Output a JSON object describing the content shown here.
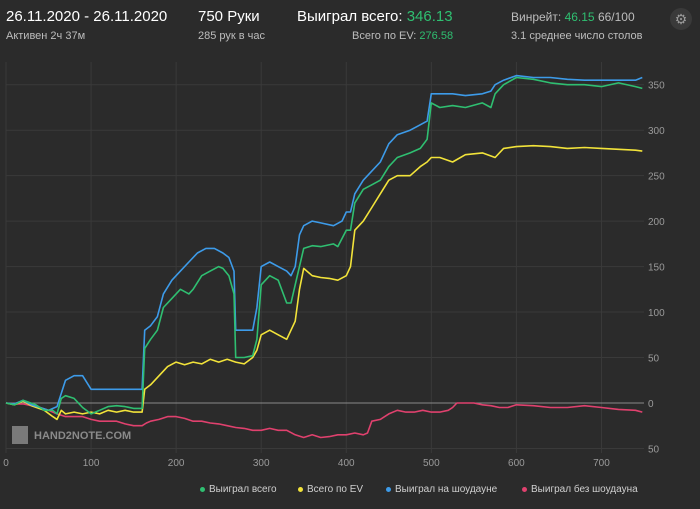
{
  "header": {
    "date_range": "26.11.2020 - 26.11.2020",
    "active": "Активен 2ч 37м",
    "hands": "750 Руки",
    "hands_per_hour": "285 рук в час",
    "won_total_label": "Выиграл всего:",
    "won_total_value": "346.13",
    "ev_label": "Всего по EV:",
    "ev_value": "276.58",
    "winrate_label": "Винрейт:",
    "winrate_value": "46.15",
    "winrate_extra": "66/100",
    "tables": "3.1 среднее число столов"
  },
  "watermark": "HAND2NOTE.COM",
  "colors": {
    "green": "#2fbf71",
    "yellow": "#f2e33a",
    "blue": "#3d9be9",
    "pink": "#e0416e"
  },
  "chart_data": {
    "type": "line",
    "xlabel": "",
    "ylabel": "",
    "xlim": [
      0,
      750
    ],
    "ylim": [
      -55,
      375
    ],
    "x_ticks": [
      0,
      100,
      200,
      300,
      400,
      500,
      600,
      700
    ],
    "y_ticks": [
      350,
      300,
      250,
      200,
      150,
      100,
      50,
      0,
      -50
    ],
    "y_tick_labels": [
      "350",
      "300",
      "250",
      "200",
      "150",
      "100",
      "50",
      "0",
      "50"
    ],
    "grid": true,
    "legend_position": "bottom",
    "series": [
      {
        "name": "Выиграл всего",
        "color": "#2fbf71",
        "points": [
          [
            0,
            0
          ],
          [
            10,
            -2
          ],
          [
            20,
            3
          ],
          [
            35,
            -2
          ],
          [
            45,
            -8
          ],
          [
            55,
            -8
          ],
          [
            60,
            -12
          ],
          [
            65,
            5
          ],
          [
            70,
            8
          ],
          [
            80,
            5
          ],
          [
            90,
            -5
          ],
          [
            100,
            -12
          ],
          [
            110,
            -8
          ],
          [
            120,
            -4
          ],
          [
            130,
            -3
          ],
          [
            140,
            -4
          ],
          [
            150,
            -6
          ],
          [
            160,
            -6
          ],
          [
            163,
            60
          ],
          [
            170,
            70
          ],
          [
            178,
            80
          ],
          [
            185,
            105
          ],
          [
            195,
            115
          ],
          [
            205,
            125
          ],
          [
            215,
            120
          ],
          [
            220,
            125
          ],
          [
            230,
            140
          ],
          [
            240,
            145
          ],
          [
            250,
            150
          ],
          [
            255,
            148
          ],
          [
            262,
            140
          ],
          [
            268,
            120
          ],
          [
            270,
            50
          ],
          [
            280,
            50
          ],
          [
            290,
            52
          ],
          [
            295,
            70
          ],
          [
            300,
            130
          ],
          [
            310,
            140
          ],
          [
            320,
            135
          ],
          [
            330,
            110
          ],
          [
            335,
            110
          ],
          [
            340,
            130
          ],
          [
            350,
            170
          ],
          [
            360,
            173
          ],
          [
            370,
            172
          ],
          [
            385,
            175
          ],
          [
            390,
            172
          ],
          [
            400,
            190
          ],
          [
            405,
            190
          ],
          [
            410,
            220
          ],
          [
            420,
            235
          ],
          [
            430,
            240
          ],
          [
            440,
            245
          ],
          [
            450,
            260
          ],
          [
            460,
            270
          ],
          [
            475,
            275
          ],
          [
            487,
            280
          ],
          [
            495,
            290
          ],
          [
            500,
            330
          ],
          [
            510,
            325
          ],
          [
            525,
            327
          ],
          [
            540,
            325
          ],
          [
            560,
            330
          ],
          [
            570,
            325
          ],
          [
            575,
            340
          ],
          [
            585,
            350
          ],
          [
            600,
            358
          ],
          [
            620,
            356
          ],
          [
            640,
            352
          ],
          [
            660,
            350
          ],
          [
            680,
            350
          ],
          [
            700,
            348
          ],
          [
            720,
            352
          ],
          [
            740,
            348
          ],
          [
            748,
            346
          ]
        ]
      },
      {
        "name": "Всего по EV",
        "color": "#f2e33a",
        "points": [
          [
            0,
            0
          ],
          [
            10,
            -2
          ],
          [
            20,
            2
          ],
          [
            30,
            -3
          ],
          [
            45,
            -8
          ],
          [
            55,
            -15
          ],
          [
            60,
            -18
          ],
          [
            65,
            -8
          ],
          [
            70,
            -12
          ],
          [
            80,
            -10
          ],
          [
            90,
            -12
          ],
          [
            100,
            -10
          ],
          [
            110,
            -12
          ],
          [
            120,
            -8
          ],
          [
            130,
            -10
          ],
          [
            140,
            -8
          ],
          [
            150,
            -10
          ],
          [
            160,
            -10
          ],
          [
            163,
            15
          ],
          [
            170,
            20
          ],
          [
            180,
            30
          ],
          [
            190,
            40
          ],
          [
            200,
            45
          ],
          [
            210,
            42
          ],
          [
            220,
            45
          ],
          [
            230,
            43
          ],
          [
            240,
            48
          ],
          [
            250,
            45
          ],
          [
            260,
            48
          ],
          [
            270,
            45
          ],
          [
            280,
            43
          ],
          [
            290,
            50
          ],
          [
            295,
            58
          ],
          [
            300,
            75
          ],
          [
            310,
            80
          ],
          [
            320,
            75
          ],
          [
            330,
            70
          ],
          [
            340,
            90
          ],
          [
            345,
            125
          ],
          [
            350,
            148
          ],
          [
            360,
            140
          ],
          [
            370,
            138
          ],
          [
            380,
            137
          ],
          [
            390,
            135
          ],
          [
            400,
            140
          ],
          [
            405,
            150
          ],
          [
            410,
            190
          ],
          [
            420,
            200
          ],
          [
            430,
            215
          ],
          [
            440,
            230
          ],
          [
            450,
            245
          ],
          [
            460,
            250
          ],
          [
            475,
            250
          ],
          [
            487,
            260
          ],
          [
            495,
            265
          ],
          [
            500,
            270
          ],
          [
            510,
            270
          ],
          [
            525,
            265
          ],
          [
            540,
            273
          ],
          [
            560,
            275
          ],
          [
            575,
            270
          ],
          [
            585,
            280
          ],
          [
            600,
            282
          ],
          [
            620,
            283
          ],
          [
            640,
            282
          ],
          [
            660,
            280
          ],
          [
            680,
            281
          ],
          [
            700,
            280
          ],
          [
            720,
            279
          ],
          [
            740,
            278
          ],
          [
            748,
            277
          ]
        ]
      },
      {
        "name": "Выиграл на шоудауне",
        "color": "#3d9be9",
        "points": [
          [
            0,
            0
          ],
          [
            10,
            -1
          ],
          [
            20,
            3
          ],
          [
            30,
            -2
          ],
          [
            40,
            -5
          ],
          [
            50,
            -8
          ],
          [
            60,
            -4
          ],
          [
            70,
            25
          ],
          [
            80,
            30
          ],
          [
            90,
            30
          ],
          [
            100,
            15
          ],
          [
            110,
            15
          ],
          [
            120,
            15
          ],
          [
            130,
            15
          ],
          [
            140,
            15
          ],
          [
            150,
            15
          ],
          [
            160,
            15
          ],
          [
            163,
            80
          ],
          [
            170,
            85
          ],
          [
            178,
            95
          ],
          [
            185,
            120
          ],
          [
            195,
            135
          ],
          [
            205,
            145
          ],
          [
            215,
            155
          ],
          [
            225,
            165
          ],
          [
            235,
            170
          ],
          [
            245,
            170
          ],
          [
            255,
            165
          ],
          [
            262,
            160
          ],
          [
            268,
            145
          ],
          [
            270,
            80
          ],
          [
            280,
            80
          ],
          [
            290,
            80
          ],
          [
            295,
            105
          ],
          [
            300,
            150
          ],
          [
            310,
            155
          ],
          [
            320,
            150
          ],
          [
            330,
            145
          ],
          [
            335,
            140
          ],
          [
            340,
            150
          ],
          [
            345,
            185
          ],
          [
            350,
            195
          ],
          [
            360,
            200
          ],
          [
            370,
            198
          ],
          [
            385,
            195
          ],
          [
            395,
            200
          ],
          [
            400,
            210
          ],
          [
            405,
            210
          ],
          [
            410,
            230
          ],
          [
            420,
            245
          ],
          [
            430,
            255
          ],
          [
            440,
            265
          ],
          [
            450,
            285
          ],
          [
            460,
            295
          ],
          [
            475,
            300
          ],
          [
            485,
            305
          ],
          [
            495,
            310
          ],
          [
            500,
            340
          ],
          [
            510,
            340
          ],
          [
            525,
            340
          ],
          [
            540,
            338
          ],
          [
            560,
            340
          ],
          [
            570,
            343
          ],
          [
            575,
            350
          ],
          [
            585,
            355
          ],
          [
            600,
            360
          ],
          [
            620,
            358
          ],
          [
            640,
            358
          ],
          [
            660,
            356
          ],
          [
            680,
            355
          ],
          [
            700,
            355
          ],
          [
            720,
            355
          ],
          [
            740,
            355
          ],
          [
            748,
            358
          ]
        ]
      },
      {
        "name": "Выиграл без шоудауна",
        "color": "#e0416e",
        "points": [
          [
            0,
            0
          ],
          [
            10,
            -1
          ],
          [
            20,
            -1
          ],
          [
            30,
            -3
          ],
          [
            40,
            -5
          ],
          [
            50,
            -8
          ],
          [
            60,
            -12
          ],
          [
            70,
            -15
          ],
          [
            80,
            -15
          ],
          [
            90,
            -15
          ],
          [
            100,
            -18
          ],
          [
            110,
            -20
          ],
          [
            120,
            -20
          ],
          [
            130,
            -20
          ],
          [
            140,
            -23
          ],
          [
            150,
            -25
          ],
          [
            160,
            -25
          ],
          [
            165,
            -22
          ],
          [
            170,
            -20
          ],
          [
            180,
            -18
          ],
          [
            190,
            -15
          ],
          [
            200,
            -15
          ],
          [
            210,
            -17
          ],
          [
            220,
            -20
          ],
          [
            230,
            -20
          ],
          [
            240,
            -22
          ],
          [
            250,
            -23
          ],
          [
            260,
            -25
          ],
          [
            270,
            -27
          ],
          [
            280,
            -28
          ],
          [
            290,
            -30
          ],
          [
            300,
            -30
          ],
          [
            310,
            -28
          ],
          [
            320,
            -30
          ],
          [
            330,
            -30
          ],
          [
            340,
            -35
          ],
          [
            350,
            -38
          ],
          [
            360,
            -35
          ],
          [
            370,
            -38
          ],
          [
            380,
            -37
          ],
          [
            390,
            -35
          ],
          [
            400,
            -35
          ],
          [
            410,
            -33
          ],
          [
            420,
            -35
          ],
          [
            425,
            -33
          ],
          [
            430,
            -20
          ],
          [
            440,
            -18
          ],
          [
            450,
            -12
          ],
          [
            460,
            -8
          ],
          [
            470,
            -10
          ],
          [
            480,
            -10
          ],
          [
            490,
            -8
          ],
          [
            500,
            -10
          ],
          [
            510,
            -10
          ],
          [
            520,
            -8
          ],
          [
            525,
            -5
          ],
          [
            530,
            0
          ],
          [
            540,
            0
          ],
          [
            550,
            0
          ],
          [
            560,
            -2
          ],
          [
            570,
            -3
          ],
          [
            580,
            -5
          ],
          [
            590,
            -5
          ],
          [
            600,
            -2
          ],
          [
            620,
            -3
          ],
          [
            640,
            -5
          ],
          [
            660,
            -5
          ],
          [
            680,
            -3
          ],
          [
            700,
            -5
          ],
          [
            720,
            -7
          ],
          [
            740,
            -8
          ],
          [
            748,
            -10
          ]
        ]
      }
    ]
  }
}
